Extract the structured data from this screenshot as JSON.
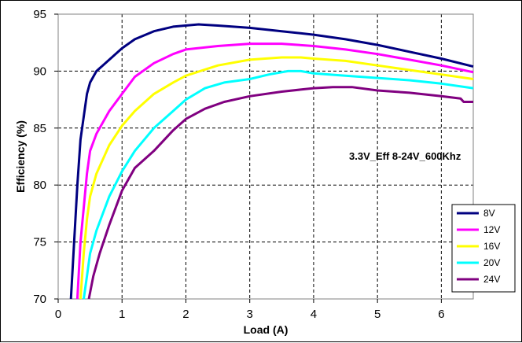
{
  "chart_data": {
    "type": "line",
    "title": "",
    "annotation": "3.3V_Eff 8-24V_600Khz",
    "xlabel": "Load (A)",
    "ylabel": "Efficiency (%)",
    "xlim": [
      0,
      6.5
    ],
    "ylim": [
      70,
      95
    ],
    "xticks": [
      0,
      1,
      2,
      3,
      4,
      5,
      6
    ],
    "yticks": [
      70,
      75,
      80,
      85,
      90,
      95
    ],
    "grid": true,
    "legend_position": "bottom-right",
    "series": [
      {
        "name": "8V",
        "color": "#000080",
        "points": [
          [
            0.2,
            70
          ],
          [
            0.25,
            75
          ],
          [
            0.3,
            80
          ],
          [
            0.35,
            84
          ],
          [
            0.4,
            86
          ],
          [
            0.45,
            88
          ],
          [
            0.5,
            89
          ],
          [
            0.6,
            90
          ],
          [
            0.8,
            91
          ],
          [
            1.0,
            92
          ],
          [
            1.2,
            92.8
          ],
          [
            1.5,
            93.5
          ],
          [
            1.8,
            93.9
          ],
          [
            2.2,
            94.1
          ],
          [
            2.5,
            94.0
          ],
          [
            3.0,
            93.8
          ],
          [
            3.5,
            93.5
          ],
          [
            4.0,
            93.2
          ],
          [
            4.5,
            92.8
          ],
          [
            5.0,
            92.3
          ],
          [
            5.5,
            91.7
          ],
          [
            6.0,
            91.1
          ],
          [
            6.5,
            90.4
          ]
        ]
      },
      {
        "name": "12V",
        "color": "#FF00FF",
        "points": [
          [
            0.3,
            70
          ],
          [
            0.35,
            75
          ],
          [
            0.4,
            78
          ],
          [
            0.45,
            81
          ],
          [
            0.5,
            83
          ],
          [
            0.6,
            84.5
          ],
          [
            0.8,
            86.5
          ],
          [
            1.0,
            88
          ],
          [
            1.2,
            89.5
          ],
          [
            1.5,
            90.7
          ],
          [
            1.8,
            91.5
          ],
          [
            2.0,
            91.9
          ],
          [
            2.5,
            92.2
          ],
          [
            3.0,
            92.4
          ],
          [
            3.5,
            92.4
          ],
          [
            4.0,
            92.2
          ],
          [
            4.5,
            91.9
          ],
          [
            5.0,
            91.5
          ],
          [
            5.5,
            91.0
          ],
          [
            6.0,
            90.5
          ],
          [
            6.5,
            89.9
          ]
        ]
      },
      {
        "name": "16V",
        "color": "#FFFF00",
        "points": [
          [
            0.35,
            70
          ],
          [
            0.4,
            74
          ],
          [
            0.45,
            77
          ],
          [
            0.5,
            79
          ],
          [
            0.6,
            81
          ],
          [
            0.8,
            83.5
          ],
          [
            1.0,
            85.2
          ],
          [
            1.2,
            86.5
          ],
          [
            1.5,
            88
          ],
          [
            1.8,
            89
          ],
          [
            2.0,
            89.6
          ],
          [
            2.5,
            90.5
          ],
          [
            3.0,
            91.0
          ],
          [
            3.5,
            91.2
          ],
          [
            3.8,
            91.2
          ],
          [
            4.0,
            91.1
          ],
          [
            4.5,
            90.9
          ],
          [
            5.0,
            90.5
          ],
          [
            5.5,
            90.1
          ],
          [
            6.0,
            89.7
          ],
          [
            6.5,
            89.3
          ]
        ]
      },
      {
        "name": "20V",
        "color": "#00FFFF",
        "points": [
          [
            0.4,
            70
          ],
          [
            0.45,
            72
          ],
          [
            0.5,
            74
          ],
          [
            0.6,
            76
          ],
          [
            0.8,
            79
          ],
          [
            1.0,
            81.2
          ],
          [
            1.2,
            83
          ],
          [
            1.5,
            85
          ],
          [
            1.8,
            86.5
          ],
          [
            2.0,
            87.5
          ],
          [
            2.3,
            88.5
          ],
          [
            2.6,
            89.0
          ],
          [
            3.0,
            89.3
          ],
          [
            3.3,
            89.7
          ],
          [
            3.6,
            90.0
          ],
          [
            3.8,
            90.0
          ],
          [
            4.0,
            89.8
          ],
          [
            4.5,
            89.6
          ],
          [
            5.0,
            89.4
          ],
          [
            5.5,
            89.2
          ],
          [
            6.0,
            88.9
          ],
          [
            6.5,
            88.5
          ]
        ]
      },
      {
        "name": "24V",
        "color": "#800080",
        "points": [
          [
            0.48,
            70
          ],
          [
            0.55,
            72
          ],
          [
            0.65,
            74
          ],
          [
            0.8,
            76.5
          ],
          [
            1.0,
            79.5
          ],
          [
            1.2,
            81.5
          ],
          [
            1.5,
            83
          ],
          [
            1.8,
            84.8
          ],
          [
            2.0,
            85.8
          ],
          [
            2.3,
            86.7
          ],
          [
            2.6,
            87.3
          ],
          [
            3.0,
            87.8
          ],
          [
            3.5,
            88.2
          ],
          [
            4.0,
            88.5
          ],
          [
            4.3,
            88.6
          ],
          [
            4.6,
            88.6
          ],
          [
            5.0,
            88.3
          ],
          [
            5.5,
            88.1
          ],
          [
            6.0,
            87.8
          ],
          [
            6.3,
            87.6
          ],
          [
            6.35,
            87.3
          ],
          [
            6.5,
            87.3
          ]
        ]
      }
    ]
  }
}
